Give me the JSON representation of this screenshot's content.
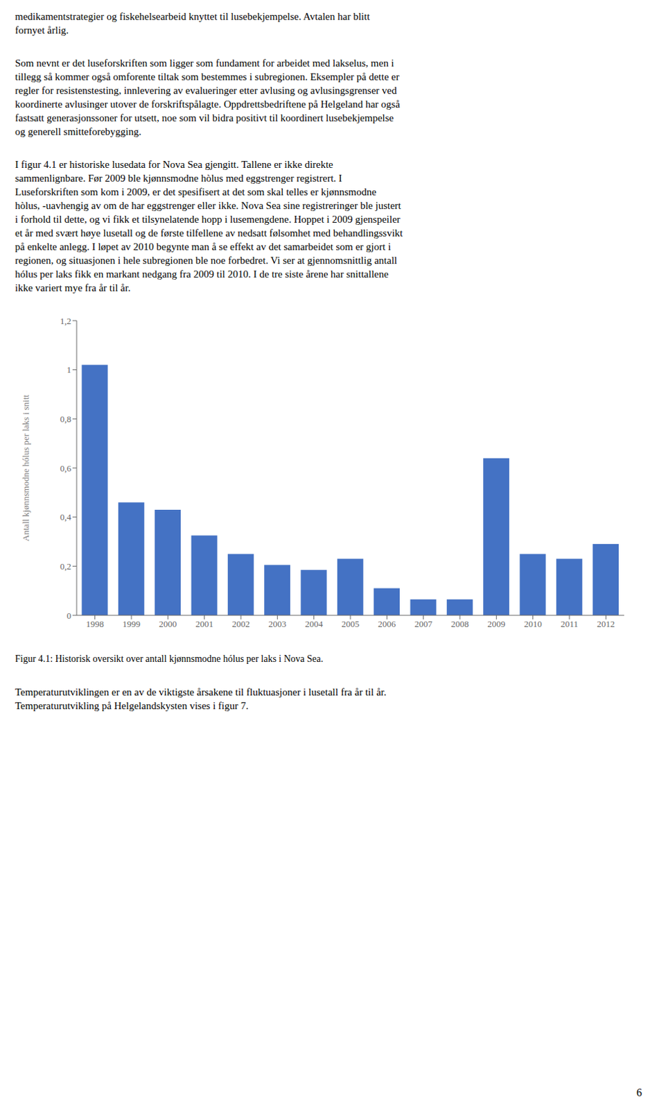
{
  "chart_data": {
    "type": "bar",
    "title": "Figur 4.1: Historisk oversikt over antall kjønnsmodne hólus per laks i Nova Sea.",
    "ylabel": "Antall kjønnsmodne hólus per laks i snitt",
    "categories": [
      "1998",
      "1999",
      "2000",
      "2001",
      "2002",
      "2003",
      "2004",
      "2005",
      "2006",
      "2007",
      "2008",
      "2009",
      "2010",
      "2011",
      "2012"
    ],
    "values": [
      1.02,
      0.46,
      0.43,
      0.325,
      0.25,
      0.205,
      0.185,
      0.23,
      0.11,
      0.065,
      0.065,
      0.64,
      0.25,
      0.23,
      0.29
    ],
    "color": "#4472C4",
    "ylim": [
      0,
      1.2
    ],
    "yticks": [
      0,
      {
        "value": 0.2,
        "label": "0,2"
      },
      {
        "value": 0.4,
        "label": "0,4"
      },
      {
        "value": 0.6,
        "label": "0,6"
      },
      {
        "value": 0.8,
        "label": "0,8"
      },
      1,
      {
        "value": 1.2,
        "label": "1,2"
      }
    ],
    "grid": false,
    "annotations": [
      "medikamentstrategier og fiskehelsearbeid knyttet til lusebekjempelse. Avtalen har blitt\nfornyet årlig.",
      "Som nevnt er det luseforskriften som ligger som fundament for arbeidet med lakselus, men i\ntillegg så kommer også omforente tiltak som bestemmes i subregionen. Eksempler på dette er\nregler for resistenstesting, innlevering av evalueringer etter avlusing og avlusingsgrenser ved\nkoordinerte avlusinger utover de forskriftspålagte. Oppdrettsbedriftene på Helgeland har også\nfastsatt generasjonssoner for utsett, noe som vil bidra positivt til koordinert lusebekjempelse\nog generell smitteforebygging.",
      "I figur 4.1 er historiske lusedata for Nova Sea gjengitt. Tallene er ikke direkte\nsammenlignbare. Før 2009 ble kjønnsmodne hòlus med eggstrenger registrert. I\nLuseforskriften som kom i 2009, er det spesifisert at det som skal telles er kjønnsmodne\nhòlus, -uavhengig av om de har eggstrenger eller ikke. Nova Sea sine registreringer ble justert\ni forhold til dette, og vi fikk et tilsynelatende hopp i lusemengdene. Hoppet i 2009 gjenspeiler\net år med svært høye lusetall og de første tilfellene av nedsatt følsomhet med behandlingssvikt\npå enkelte anlegg. I løpet av 2010 begynte man å se effekt av det samarbeidet som er gjort i\nregionen, og situasjonen i hele subregionen ble noe forbedret. Vi ser at gjennomsnittlig antall\nhólus per laks fikk en markant nedgang fra 2009 til 2010. I de tre siste årene har snittallene\nikke variert mye fra år til år.",
      "Temperaturutviklingen er en av de viktigste årsakene til fluktuasjoner i lusetall fra år til år.\nTemperaturutvikling på Helgelandskysten vises i figur 7.",
      "6"
    ]
  }
}
